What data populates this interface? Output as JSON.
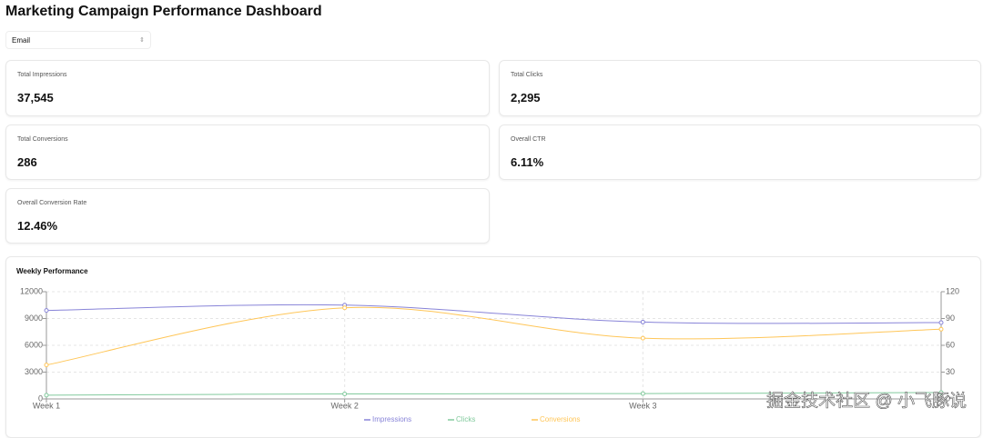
{
  "header": {
    "title": "Marketing Campaign Performance Dashboard"
  },
  "filter": {
    "value": "Email"
  },
  "cards": [
    {
      "label": "Total Impressions",
      "value": "37,545"
    },
    {
      "label": "Total Clicks",
      "value": "2,295"
    },
    {
      "label": "Total Conversions",
      "value": "286"
    },
    {
      "label": "Overall CTR",
      "value": "6.11%"
    },
    {
      "label": "Overall Conversion Rate",
      "value": "12.46%"
    }
  ],
  "chart": {
    "type": "line",
    "title": "Weekly Performance",
    "categories": [
      "Week 1",
      "Week 2",
      "Week 3",
      null
    ],
    "series": [
      {
        "name": "Impressions",
        "color": "#8884d8",
        "values": [
          9900,
          10500,
          8600,
          8545
        ]
      },
      {
        "name": "Clicks",
        "color": "#82ca9d",
        "values": [
          420,
          560,
          600,
          715
        ]
      },
      {
        "name": "Conversions",
        "color": "#ffc658",
        "values": [
          38,
          102,
          68,
          78
        ],
        "axis": "y2"
      }
    ],
    "ylim": [
      0,
      12000
    ],
    "yticks": [
      0,
      3000,
      6000,
      9000,
      12000
    ],
    "y2lim": [
      0,
      120
    ],
    "y2ticks": [
      0,
      30,
      60,
      90,
      120
    ],
    "grid": true
  },
  "watermark": "掘金技术社区 @ 小飞豚说"
}
